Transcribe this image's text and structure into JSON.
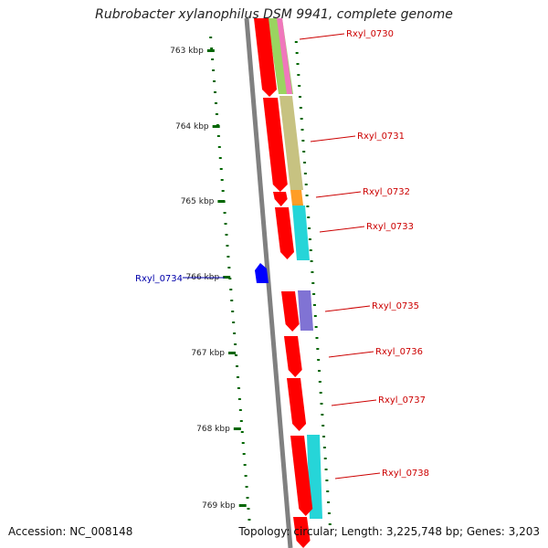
{
  "title": "Rubrobacter xylanophilus DSM 9941, complete genome",
  "accession": "Accession: NC_008148",
  "summary": "Topology: circular; Length: 3,225,748 bp; Genes: 3,203",
  "colors": {
    "forward_gene": "#ff0000",
    "reverse_gene": "#0000ff",
    "label_forward": "#cc0000",
    "label_reverse": "#0000aa",
    "backbone": "#808080",
    "ticks": "#006600",
    "cog_olive": "#bdb76b",
    "cog_orange": "#ff8c00",
    "cog_cyan": "#00ced1",
    "cog_purple": "#6a5acd"
  },
  "ticks": [
    {
      "label": "763 kbp"
    },
    {
      "label": "764 kbp"
    },
    {
      "label": "765 kbp"
    },
    {
      "label": "766 kbp"
    },
    {
      "label": "767 kbp"
    },
    {
      "label": "768 kbp"
    },
    {
      "label": "769 kbp"
    }
  ],
  "gene_labels": [
    {
      "name": "Rxyl_0730",
      "strand": "forward"
    },
    {
      "name": "Rxyl_0731",
      "strand": "forward"
    },
    {
      "name": "Rxyl_0732",
      "strand": "forward"
    },
    {
      "name": "Rxyl_0733",
      "strand": "forward"
    },
    {
      "name": "Rxyl_0734",
      "strand": "reverse"
    },
    {
      "name": "Rxyl_0735",
      "strand": "forward"
    },
    {
      "name": "Rxyl_0736",
      "strand": "forward"
    },
    {
      "name": "Rxyl_0737",
      "strand": "forward"
    },
    {
      "name": "Rxyl_0738",
      "strand": "forward"
    }
  ]
}
